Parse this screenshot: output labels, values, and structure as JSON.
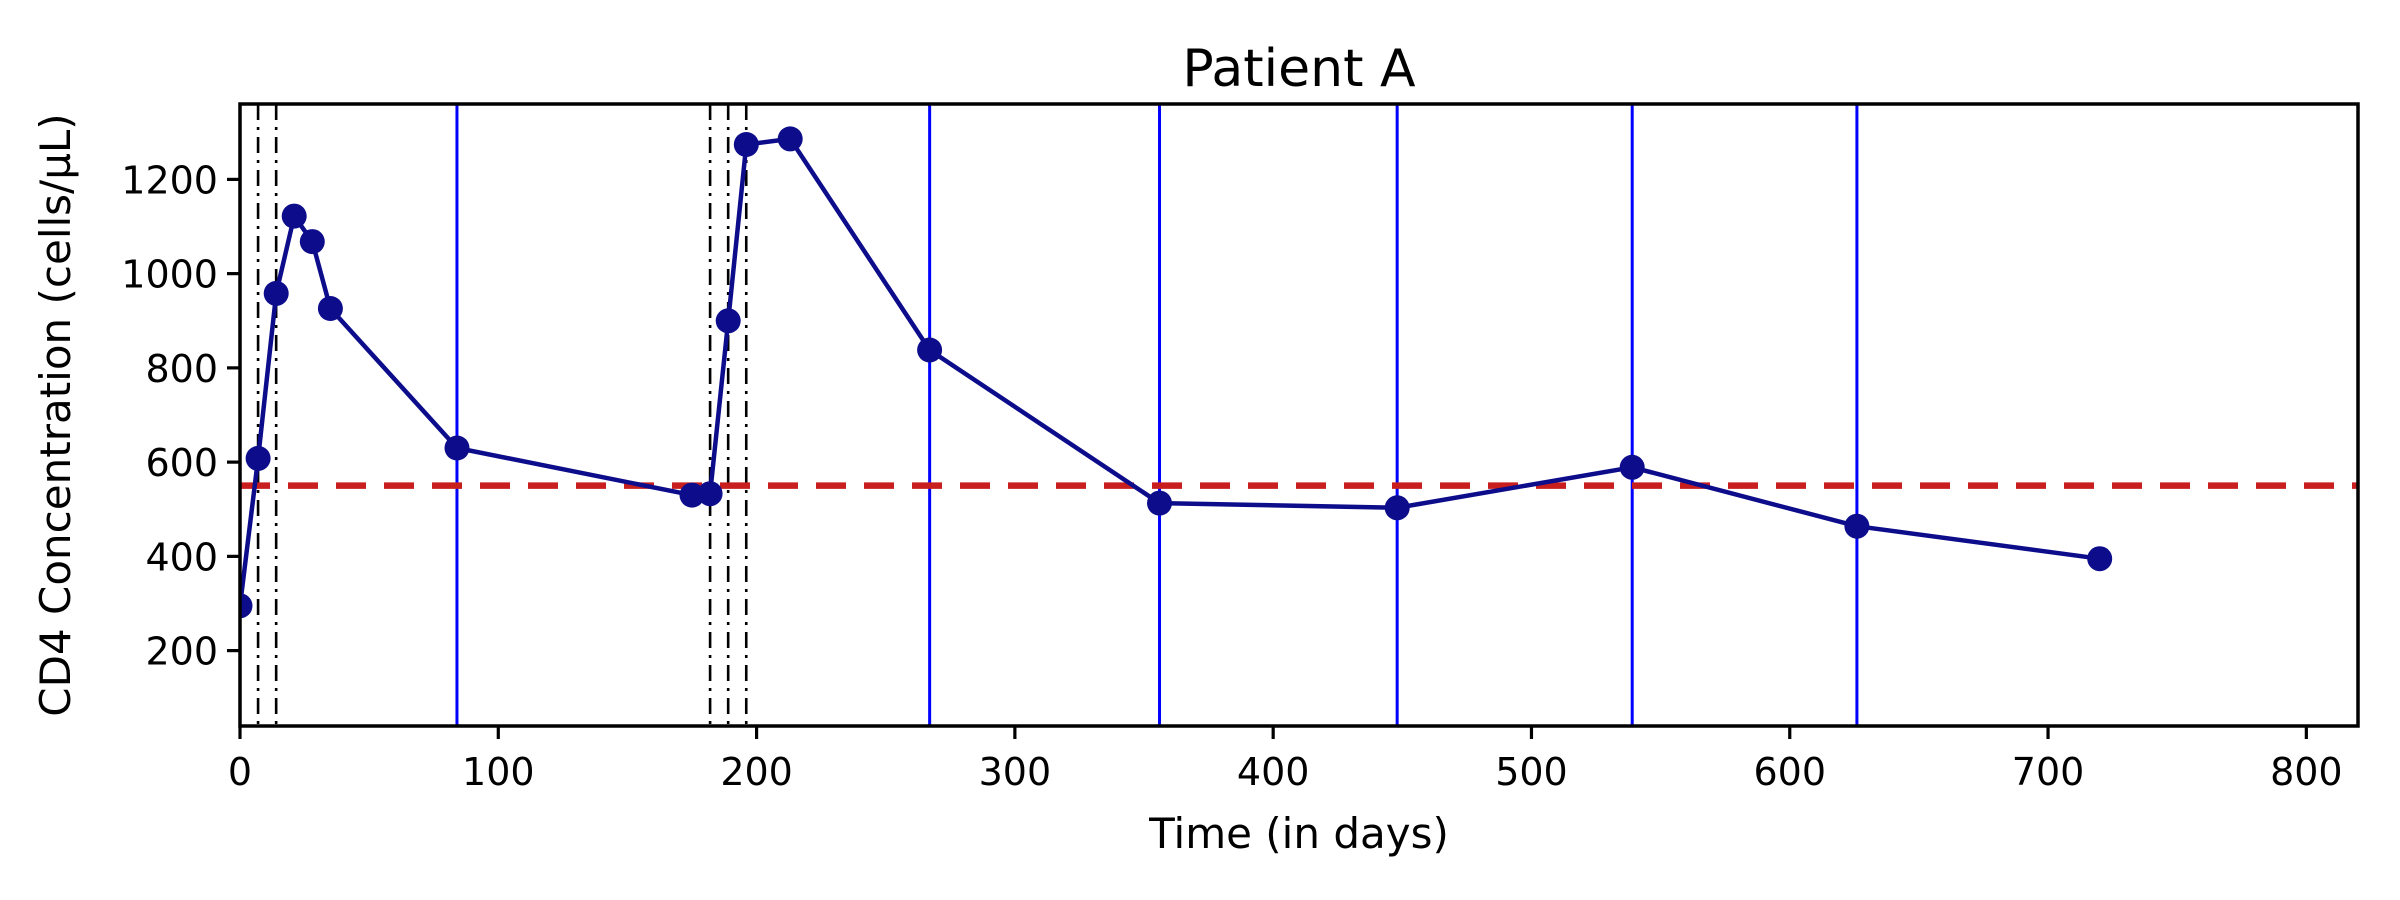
{
  "figure": {
    "title": "Patient A",
    "xlabel": "Time (in days)",
    "ylabel": "CD4 Concentration (cells/µL)"
  },
  "chart_data": {
    "type": "line",
    "title": "Patient A",
    "xlabel": "Time (in days)",
    "ylabel": "CD4 Concentration (cells/µL)",
    "xlim": [
      0,
      820
    ],
    "ylim": [
      40,
      1360
    ],
    "x_ticks": [
      0,
      100,
      200,
      300,
      400,
      500,
      600,
      700,
      800
    ],
    "y_ticks": [
      200,
      400,
      600,
      800,
      1000,
      1200
    ],
    "grid": false,
    "legend": null,
    "series": [
      {
        "name": "CD4 concentration",
        "color": "#0D0D8C",
        "marker": "circle",
        "line_style": "solid",
        "points": [
          [
            0,
            295
          ],
          [
            7,
            608
          ],
          [
            14,
            958
          ],
          [
            21,
            1122
          ],
          [
            28,
            1068
          ],
          [
            35,
            926
          ],
          [
            84,
            630
          ],
          [
            175,
            530
          ],
          [
            182,
            533
          ],
          [
            189,
            900
          ],
          [
            196,
            1274
          ],
          [
            213,
            1286
          ],
          [
            267,
            838
          ],
          [
            356,
            513
          ],
          [
            448,
            503
          ],
          [
            539,
            589
          ],
          [
            626,
            464
          ],
          [
            720,
            395
          ]
        ]
      }
    ],
    "threshold_line": {
      "orientation": "horizontal",
      "value": 550,
      "color": "#C81E1E",
      "style": "dashed"
    },
    "event_lines_dashdot": {
      "x": [
        7,
        14,
        182,
        189,
        196
      ],
      "color": "#000000",
      "style": "dashdot"
    },
    "visit_lines_solid": {
      "x": [
        84,
        267,
        356,
        448,
        539,
        626
      ],
      "color": "#0000FF",
      "style": "solid"
    }
  }
}
